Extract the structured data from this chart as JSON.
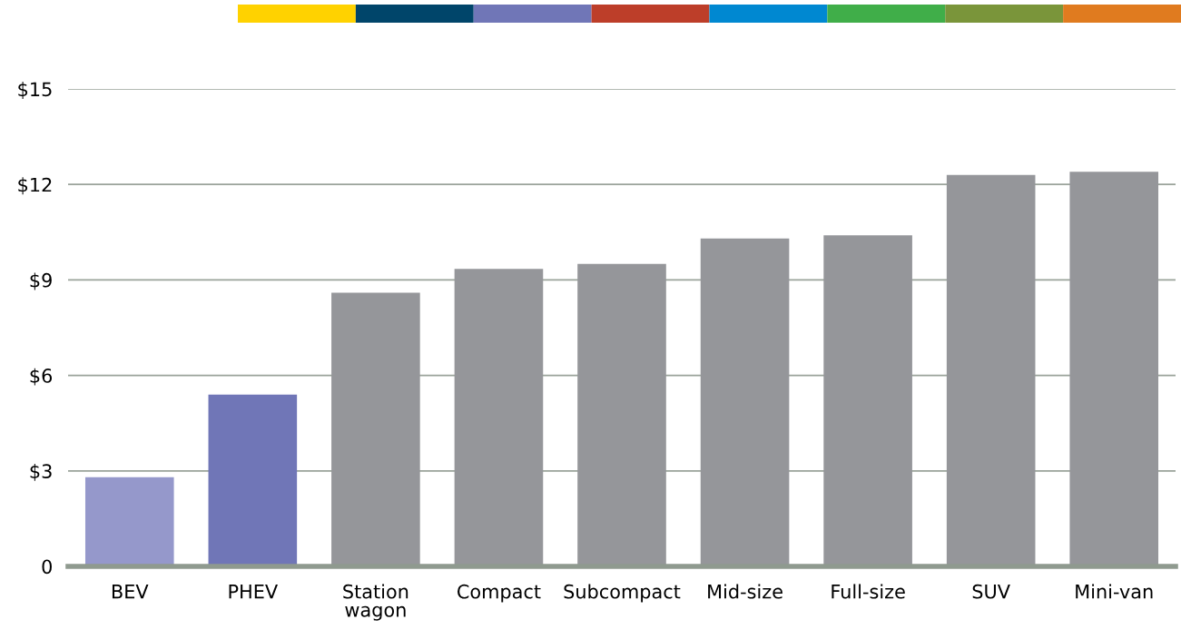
{
  "chart_data": {
    "type": "bar",
    "categories": [
      "BEV",
      "PHEV",
      "Station\nwagon",
      "Compact",
      "Subcompact",
      "Mid-size",
      "Full-size",
      "SUV",
      "Mini-van"
    ],
    "values": [
      2.8,
      5.4,
      8.6,
      9.35,
      9.5,
      10.3,
      10.4,
      12.3,
      12.4
    ],
    "colors": [
      "#9598cb",
      "#7076b7",
      "#95969a",
      "#95969a",
      "#95969a",
      "#95969a",
      "#95969a",
      "#95969a",
      "#95969a"
    ],
    "ylim": [
      0,
      15
    ],
    "yticks": [
      0,
      {
        "value": 3,
        "label": "$3"
      },
      {
        "value": 6,
        "label": "$6"
      },
      {
        "value": 9,
        "label": "$9"
      },
      {
        "value": 12,
        "label": "$12"
      },
      {
        "value": 15,
        "label": "$15"
      }
    ],
    "grid": "y"
  }
}
